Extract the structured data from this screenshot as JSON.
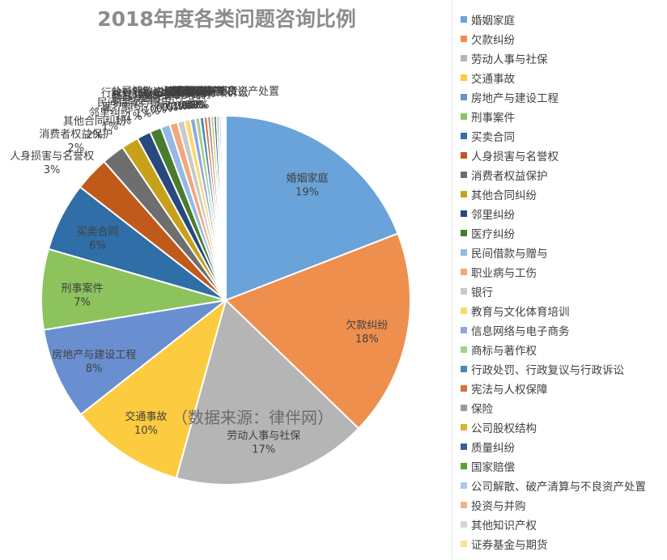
{
  "chart_data": {
    "type": "pie",
    "title": "2018年度各类问题咨询比例",
    "source_note": "（数据来源：律伴网）",
    "slices": [
      {
        "name": "婚姻家庭",
        "value": 19,
        "label": "19%",
        "color": "#6aa3d9"
      },
      {
        "name": "欠款纠纷",
        "value": 18,
        "label": "18%",
        "color": "#ee8f4e"
      },
      {
        "name": "劳动人事与社保",
        "value": 17,
        "label": "17%",
        "color": "#b5b5b5"
      },
      {
        "name": "交通事故",
        "value": 10,
        "label": "10%",
        "color": "#fdcb3f"
      },
      {
        "name": "房地产与建设工程",
        "value": 8,
        "label": "8%",
        "color": "#6a8fd0"
      },
      {
        "name": "刑事案件",
        "value": 7,
        "label": "7%",
        "color": "#8cc35c"
      },
      {
        "name": "买卖合同",
        "value": 6,
        "label": "6%",
        "color": "#2f6ea6"
      },
      {
        "name": "人身损害与名誉权",
        "value": 3,
        "label": "3%",
        "color": "#c05a1b"
      },
      {
        "name": "消费者权益保护",
        "value": 2,
        "label": "2%",
        "color": "#6e6e6e"
      },
      {
        "name": "其他合同纠纷",
        "value": 1.5,
        "label": "2%",
        "color": "#c8a11b"
      },
      {
        "name": "邻里纠纷",
        "value": 1.2,
        "label": "1%",
        "color": "#27497e"
      },
      {
        "name": "医疗纠纷",
        "value": 1,
        "label": "1%",
        "color": "#4a7c2d"
      },
      {
        "name": "民间借款与赠与",
        "value": 0.8,
        "label": "1%",
        "color": "#93b9e4"
      },
      {
        "name": "职业病与工伤",
        "value": 0.7,
        "label": "1%",
        "color": "#f3a77c"
      },
      {
        "name": "银行",
        "value": 0.6,
        "label": "1%",
        "color": "#c9c9c9"
      },
      {
        "name": "教育与文化体育培训",
        "value": 0.5,
        "label": "0%",
        "color": "#fbd86f"
      },
      {
        "name": "信息网络与电子商务",
        "value": 0.45,
        "label": "0%",
        "color": "#8da7dd"
      },
      {
        "name": "商标与著作权",
        "value": 0.4,
        "label": "0%",
        "color": "#a6d08a"
      },
      {
        "name": "行政处罚、行政复议与行政诉讼",
        "value": 0.35,
        "label": "0%",
        "color": "#4c86be"
      },
      {
        "name": "宪法与人权保障",
        "value": 0.3,
        "label": "0%",
        "color": "#d8743a"
      },
      {
        "name": "保险",
        "value": 0.3,
        "label": "0%",
        "color": "#9a9a9a"
      },
      {
        "name": "公司股权结构",
        "value": 0.25,
        "label": "0%",
        "color": "#d8b23a"
      },
      {
        "name": "质量纠纷",
        "value": 0.25,
        "label": "0%",
        "color": "#3a5ea0"
      },
      {
        "name": "国家赔偿",
        "value": 0.2,
        "label": "0%",
        "color": "#5f9e3a"
      },
      {
        "name": "公司解散、破产清算与不良资产处置",
        "value": 0.2,
        "label": "0%",
        "color": "#a9c8ec"
      },
      {
        "name": "投资与并购",
        "value": 0.15,
        "label": "0%",
        "color": "#f5b08a"
      },
      {
        "name": "其他知识产权",
        "value": 0.15,
        "label": "0%",
        "color": "#d6d6d6"
      },
      {
        "name": "证券基金与期货",
        "value": 0.1,
        "label": "0%",
        "color": "#fde08f"
      }
    ]
  }
}
